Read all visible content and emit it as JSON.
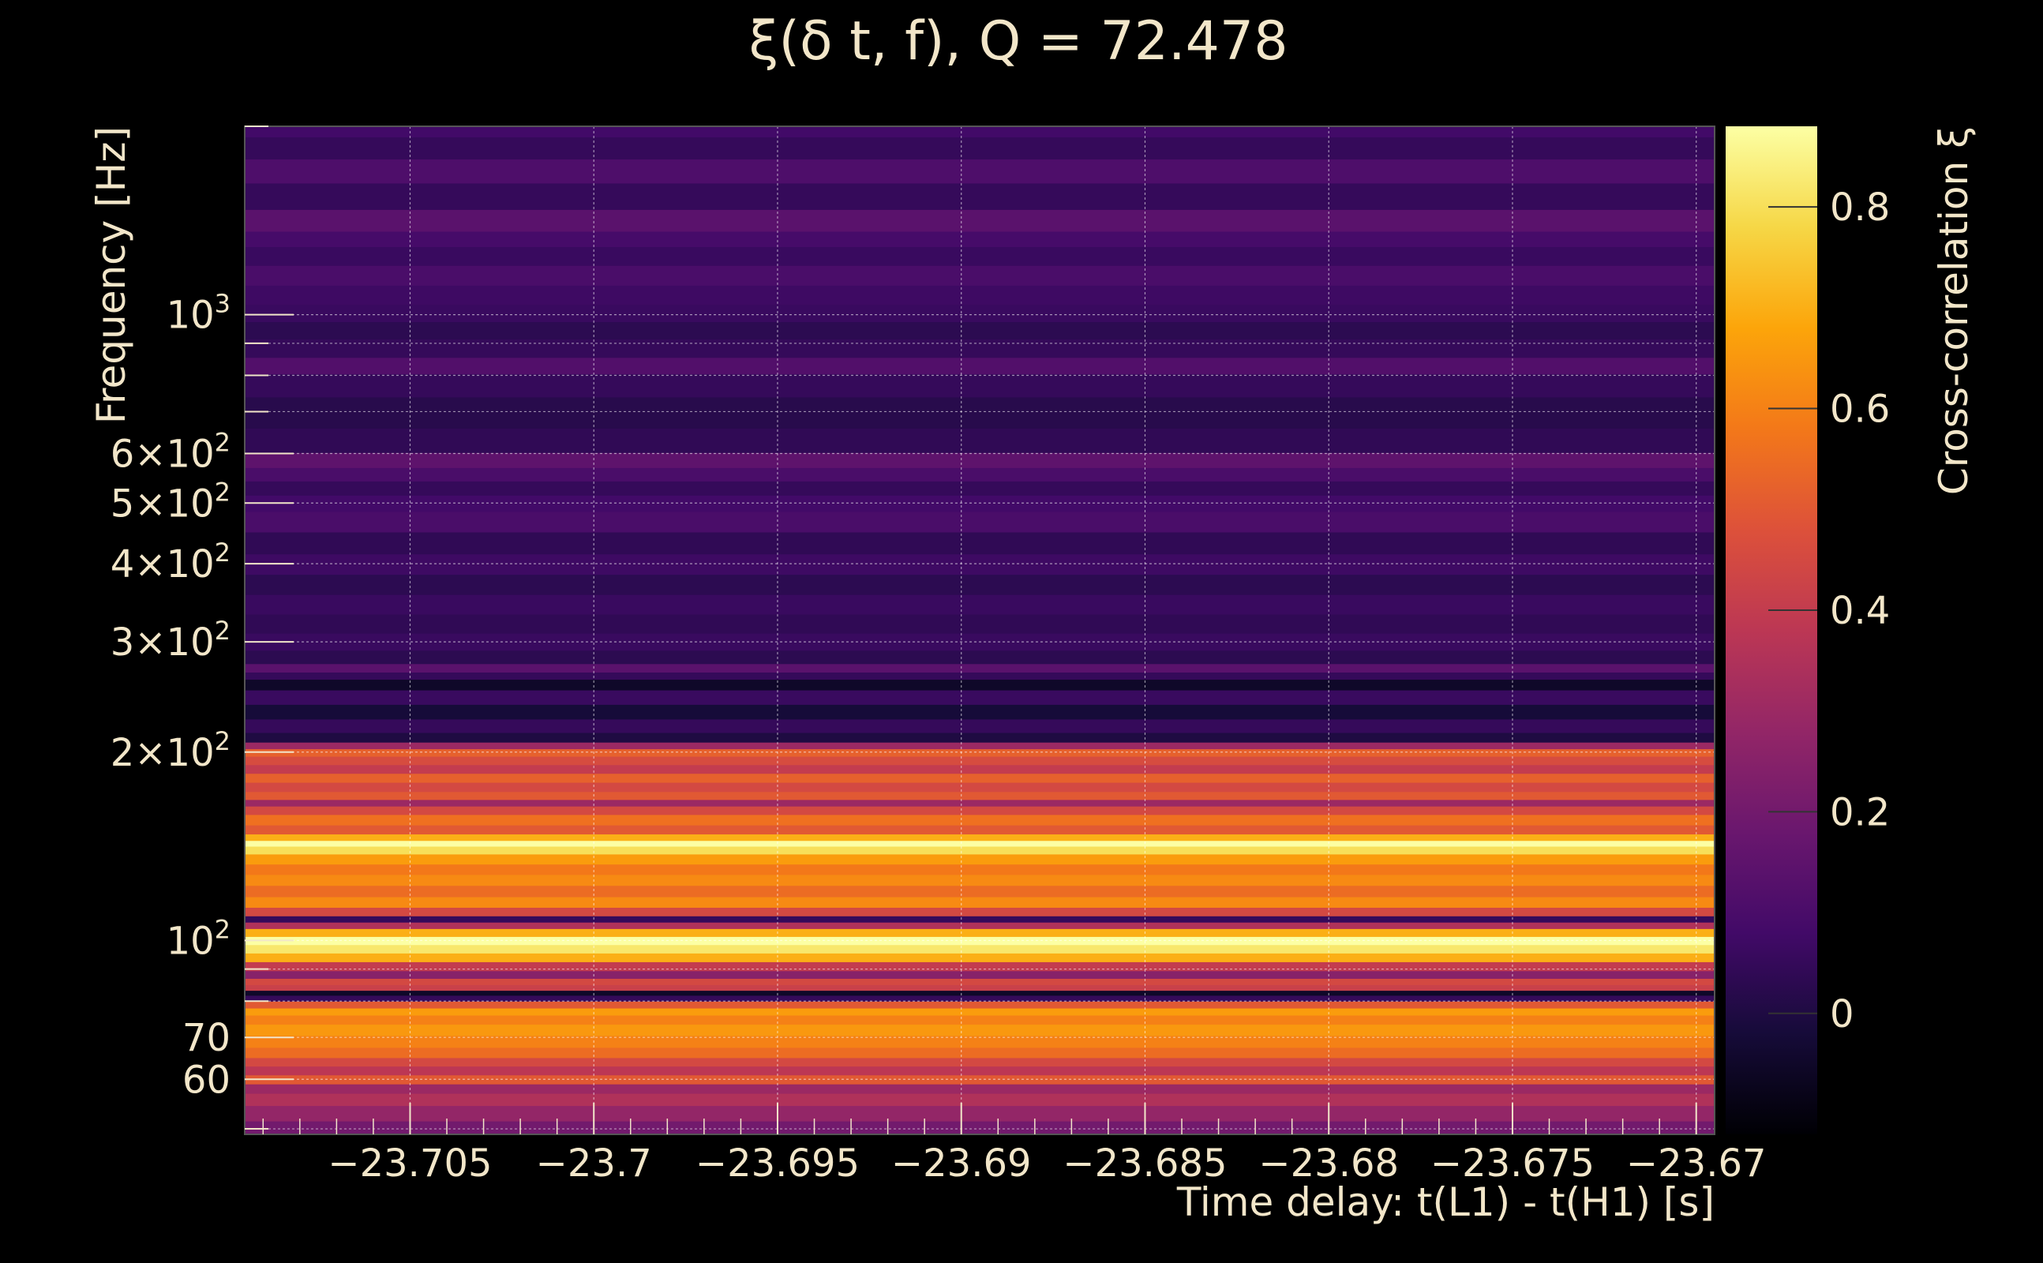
{
  "chart_data": {
    "type": "heatmap",
    "title": "ξ(δ t, f), Q = 72.478",
    "xlabel": "Time delay: t(L1) - t(H1) [s]",
    "ylabel": "Frequency [Hz]",
    "colorbar_label": "Cross-correlation ξ",
    "x_range": [
      -23.7095,
      -23.6695
    ],
    "y_range": [
      49,
      2000
    ],
    "y_scale": "log",
    "color_range": [
      -0.12,
      0.88
    ],
    "colormap": "inferno",
    "grid": true,
    "x_ticks": [
      {
        "value": -23.705,
        "label": "−23.705"
      },
      {
        "value": -23.7,
        "label": "−23.7"
      },
      {
        "value": -23.695,
        "label": "−23.695"
      },
      {
        "value": -23.69,
        "label": "−23.69"
      },
      {
        "value": -23.685,
        "label": "−23.685"
      },
      {
        "value": -23.68,
        "label": "−23.68"
      },
      {
        "value": -23.675,
        "label": "−23.675"
      },
      {
        "value": -23.67,
        "label": "−23.67"
      }
    ],
    "y_ticks": [
      {
        "value": 60,
        "label": "60",
        "sup": ""
      },
      {
        "value": 70,
        "label": "70",
        "sup": ""
      },
      {
        "value": 100,
        "label": "10",
        "sup": "2"
      },
      {
        "value": 200,
        "label": "2×10",
        "sup": "2"
      },
      {
        "value": 300,
        "label": "3×10",
        "sup": "2"
      },
      {
        "value": 400,
        "label": "4×10",
        "sup": "2"
      },
      {
        "value": 500,
        "label": "5×10",
        "sup": "2"
      },
      {
        "value": 600,
        "label": "6×10",
        "sup": "2"
      },
      {
        "value": 1000,
        "label": "10",
        "sup": "3"
      }
    ],
    "y_minor_ticks": [
      50,
      80,
      90,
      700,
      800,
      900,
      2000
    ],
    "colorbar_ticks": [
      {
        "value": 0,
        "label": "0"
      },
      {
        "value": 0.2,
        "label": "0.2"
      },
      {
        "value": 0.4,
        "label": "0.4"
      },
      {
        "value": 0.6,
        "label": "0.6"
      },
      {
        "value": 0.8,
        "label": "0.8"
      }
    ],
    "frequency_bands": [
      {
        "f": 50,
        "xi": 0.2
      },
      {
        "f": 53,
        "xi": 0.28
      },
      {
        "f": 56,
        "xi": 0.35
      },
      {
        "f": 58,
        "xi": 0.3
      },
      {
        "f": 60,
        "xi": 0.5
      },
      {
        "f": 62,
        "xi": 0.38
      },
      {
        "f": 64,
        "xi": 0.45
      },
      {
        "f": 66,
        "xi": 0.55
      },
      {
        "f": 69,
        "xi": 0.6
      },
      {
        "f": 72,
        "xi": 0.65
      },
      {
        "f": 75,
        "xi": 0.6
      },
      {
        "f": 77,
        "xi": 0.66
      },
      {
        "f": 79,
        "xi": 0.5
      },
      {
        "f": 81,
        "xi": 0.05
      },
      {
        "f": 82.5,
        "xi": -0.05
      },
      {
        "f": 84,
        "xi": 0.42
      },
      {
        "f": 86,
        "xi": 0.45
      },
      {
        "f": 88,
        "xi": 0.25
      },
      {
        "f": 91,
        "xi": 0.4
      },
      {
        "f": 94,
        "xi": 0.7
      },
      {
        "f": 97,
        "xi": 0.82
      },
      {
        "f": 100,
        "xi": 0.88
      },
      {
        "f": 103,
        "xi": 0.7
      },
      {
        "f": 106,
        "xi": 0.35
      },
      {
        "f": 108,
        "xi": 0.05
      },
      {
        "f": 111,
        "xi": 0.45
      },
      {
        "f": 115,
        "xi": 0.62
      },
      {
        "f": 120,
        "xi": 0.55
      },
      {
        "f": 125,
        "xi": 0.62
      },
      {
        "f": 130,
        "xi": 0.58
      },
      {
        "f": 135,
        "xi": 0.66
      },
      {
        "f": 140,
        "xi": 0.8
      },
      {
        "f": 143,
        "xi": 0.88
      },
      {
        "f": 146,
        "xi": 0.7
      },
      {
        "f": 150,
        "xi": 0.5
      },
      {
        "f": 156,
        "xi": 0.56
      },
      {
        "f": 162,
        "xi": 0.45
      },
      {
        "f": 166,
        "xi": 0.3
      },
      {
        "f": 170,
        "xi": 0.5
      },
      {
        "f": 176,
        "xi": 0.45
      },
      {
        "f": 182,
        "xi": 0.52
      },
      {
        "f": 188,
        "xi": 0.4
      },
      {
        "f": 194,
        "xi": 0.46
      },
      {
        "f": 200,
        "xi": 0.52
      },
      {
        "f": 205,
        "xi": 0.3
      },
      {
        "f": 210,
        "xi": 0.0
      },
      {
        "f": 220,
        "xi": 0.05
      },
      {
        "f": 232,
        "xi": -0.02
      },
      {
        "f": 245,
        "xi": 0.06
      },
      {
        "f": 258,
        "xi": -0.05
      },
      {
        "f": 265,
        "xi": 0.05
      },
      {
        "f": 272,
        "xi": 0.14
      },
      {
        "f": 282,
        "xi": 0.03
      },
      {
        "f": 300,
        "xi": 0.06
      },
      {
        "f": 320,
        "xi": 0.04
      },
      {
        "f": 345,
        "xi": 0.06
      },
      {
        "f": 370,
        "xi": 0.03
      },
      {
        "f": 400,
        "xi": 0.07
      },
      {
        "f": 430,
        "xi": 0.04
      },
      {
        "f": 470,
        "xi": 0.1
      },
      {
        "f": 500,
        "xi": 0.08
      },
      {
        "f": 530,
        "xi": 0.05
      },
      {
        "f": 555,
        "xi": 0.1
      },
      {
        "f": 585,
        "xi": 0.15
      },
      {
        "f": 620,
        "xi": 0.04
      },
      {
        "f": 700,
        "xi": 0.02
      },
      {
        "f": 780,
        "xi": 0.05
      },
      {
        "f": 830,
        "xi": 0.12
      },
      {
        "f": 880,
        "xi": 0.05
      },
      {
        "f": 950,
        "xi": 0.03
      },
      {
        "f": 1000,
        "xi": 0.06
      },
      {
        "f": 1080,
        "xi": 0.07
      },
      {
        "f": 1150,
        "xi": 0.1
      },
      {
        "f": 1250,
        "xi": 0.06
      },
      {
        "f": 1320,
        "xi": 0.09
      },
      {
        "f": 1400,
        "xi": 0.14
      },
      {
        "f": 1550,
        "xi": 0.05
      },
      {
        "f": 1700,
        "xi": 0.11
      },
      {
        "f": 1850,
        "xi": 0.05
      },
      {
        "f": 2000,
        "xi": 0.08
      }
    ]
  }
}
